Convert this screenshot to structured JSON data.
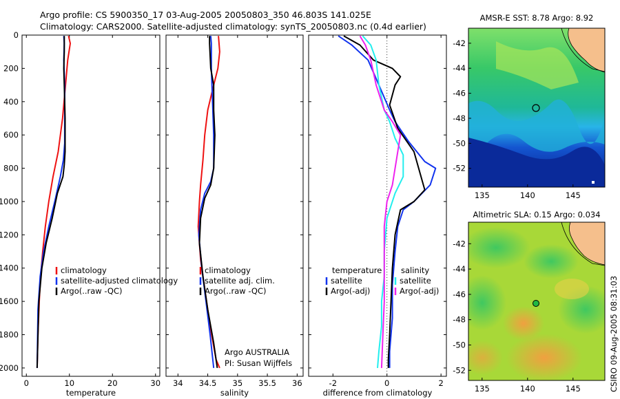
{
  "header": {
    "line1": "Argo profile: CS 5900350_17 03-Aug-2005 20050803_350 46.803S 141.025E",
    "line2": "Climatology: CARS2000. Satellite-adjusted climatology: synTS_20050803.nc (0.4d earlier)"
  },
  "stamp": "CSIRO 09-Aug-2005 08:31:03",
  "colors": {
    "red": "#ee1111",
    "blue": "#1133ee",
    "black": "#000000",
    "cyan": "#22eeee",
    "magenta": "#ee22ee"
  },
  "chart_data": [
    {
      "type": "line",
      "xlabel": "temperature",
      "xlim": [
        -1,
        31
      ],
      "ylim": [
        2050,
        0
      ],
      "xticks": [
        0,
        10,
        20,
        30
      ],
      "yticks": [
        0,
        200,
        400,
        600,
        800,
        1000,
        1200,
        1400,
        1600,
        1800,
        2000
      ],
      "legend": [
        "climatology",
        "satellite-adjusted climatology",
        "Argo(..raw -QC)"
      ],
      "series": [
        {
          "name": "climatology",
          "color": "red",
          "x": [
            9.8,
            10.2,
            9.6,
            9.1,
            8.4,
            7.4,
            6.2,
            5.2,
            4.4,
            3.8,
            3.3,
            3.0,
            2.7,
            2.5
          ],
          "y": [
            5,
            50,
            150,
            300,
            500,
            700,
            850,
            1000,
            1150,
            1300,
            1450,
            1600,
            1800,
            2000
          ]
        },
        {
          "name": "satellite-adjusted climatology",
          "color": "blue",
          "x": [
            8.7,
            8.8,
            8.7,
            8.9,
            8.9,
            8.9,
            8.6,
            7.9,
            6.6,
            5.2,
            4.0,
            3.2,
            2.7,
            2.5
          ],
          "y": [
            5,
            50,
            150,
            300,
            500,
            650,
            750,
            850,
            1000,
            1150,
            1300,
            1450,
            1650,
            2000
          ]
        },
        {
          "name": "Argo(..raw -QC)",
          "color": "black",
          "x": [
            8.8,
            8.8,
            8.7,
            8.8,
            9.0,
            9.0,
            8.8,
            8.5,
            7.2,
            6.0,
            4.6,
            3.6,
            2.9,
            2.5
          ],
          "y": [
            5,
            100,
            200,
            300,
            500,
            700,
            780,
            850,
            950,
            1100,
            1250,
            1400,
            1600,
            2000
          ]
        }
      ]
    },
    {
      "type": "line",
      "xlabel": "salinity",
      "xlim": [
        33.8,
        36.1
      ],
      "ylim": [
        2050,
        0
      ],
      "xticks": [
        34,
        34.5,
        35,
        35.5,
        36
      ],
      "xticklabels": [
        "34",
        "34.5",
        "35",
        "35.5",
        "36"
      ],
      "legend": [
        "climatology",
        "satellite adj. clim.",
        "Argo(..raw -QC)"
      ],
      "series": [
        {
          "name": "climatology",
          "color": "red",
          "x": [
            34.68,
            34.7,
            34.67,
            34.6,
            34.5,
            34.45,
            34.42,
            34.38,
            34.36,
            34.34,
            34.38,
            34.46,
            34.54,
            34.64,
            34.7
          ],
          "y": [
            5,
            100,
            200,
            300,
            450,
            600,
            750,
            900,
            1000,
            1150,
            1350,
            1550,
            1750,
            1950,
            2000
          ]
        },
        {
          "name": "satellite adj. clim.",
          "color": "blue",
          "x": [
            34.55,
            34.56,
            34.56,
            34.58,
            34.6,
            34.6,
            34.6,
            34.55,
            34.45,
            34.38,
            34.35,
            34.4,
            34.47,
            34.54,
            34.6
          ],
          "y": [
            5,
            50,
            200,
            400,
            600,
            680,
            800,
            880,
            950,
            1050,
            1200,
            1400,
            1600,
            1800,
            2000
          ]
        },
        {
          "name": "Argo(..raw -QC)",
          "color": "black",
          "x": [
            34.53,
            34.53,
            34.55,
            34.6,
            34.6,
            34.62,
            34.6,
            34.55,
            34.45,
            34.38,
            34.36,
            34.42,
            34.5,
            34.6,
            34.66
          ],
          "y": [
            5,
            50,
            200,
            300,
            450,
            600,
            800,
            900,
            980,
            1100,
            1250,
            1450,
            1650,
            1850,
            2000
          ]
        }
      ]
    },
    {
      "type": "line",
      "xlabel": "difference from climatology",
      "xlim": [
        -2.9,
        2.2
      ],
      "ylim": [
        2050,
        0
      ],
      "xticks": [
        -2,
        0,
        2
      ],
      "legend_groups": [
        {
          "title": "temperature",
          "items": [
            {
              "name": "satellite",
              "color": "blue"
            },
            {
              "name": "Argo(-adj)",
              "color": "black"
            }
          ]
        },
        {
          "title": "salinity",
          "items": [
            {
              "name": "satellite",
              "color": "cyan"
            },
            {
              "name": "Argo(-adj)",
              "color": "magenta"
            }
          ]
        }
      ],
      "zero_line": 0,
      "series": [
        {
          "name": "temperature satellite",
          "color": "blue",
          "x": [
            -1.8,
            -1.3,
            -0.7,
            -0.3,
            0.1,
            0.3,
            0.8,
            1.4,
            1.8,
            1.6,
            1.0,
            0.6,
            0.4,
            0.3,
            0.2,
            0.2,
            0.1,
            0.1
          ],
          "y": [
            5,
            60,
            150,
            300,
            450,
            520,
            640,
            760,
            800,
            900,
            1000,
            1050,
            1150,
            1300,
            1500,
            1700,
            1900,
            2000
          ]
        },
        {
          "name": "temperature Argo(-adj)",
          "color": "black",
          "x": [
            -1.6,
            -1.0,
            -0.5,
            0.2,
            0.5,
            0.3,
            0.1,
            0.4,
            1.0,
            1.4,
            1.0,
            0.5,
            0.3,
            0.2,
            0.15,
            0.1,
            0.05,
            0.05
          ],
          "y": [
            5,
            60,
            150,
            200,
            250,
            300,
            420,
            560,
            700,
            930,
            1000,
            1050,
            1200,
            1400,
            1600,
            1800,
            1950,
            2000
          ]
        },
        {
          "name": "salinity satellite",
          "color": "cyan",
          "x": [
            -0.9,
            -0.6,
            -0.4,
            -0.3,
            -0.1,
            0.1,
            0.3,
            0.6,
            0.6,
            0.3,
            0.0,
            -0.1,
            -0.1,
            -0.2,
            -0.2,
            -0.3,
            -0.35
          ],
          "y": [
            5,
            60,
            150,
            300,
            450,
            520,
            620,
            720,
            850,
            950,
            1100,
            1300,
            1450,
            1600,
            1750,
            1900,
            2000
          ]
        },
        {
          "name": "salinity Argo(-adj)",
          "color": "magenta",
          "x": [
            -1.0,
            -0.8,
            -0.6,
            -0.4,
            -0.1,
            0.2,
            0.5,
            0.4,
            0.2,
            0.0,
            -0.1,
            -0.1,
            -0.1,
            -0.1,
            -0.15,
            -0.2
          ],
          "y": [
            5,
            60,
            150,
            300,
            450,
            520,
            600,
            700,
            900,
            1000,
            1150,
            1300,
            1450,
            1600,
            1800,
            2000
          ]
        }
      ]
    }
  ],
  "maps": [
    {
      "title": "AMSR-E SST: 8.78  Argo: 8.92",
      "xticks": [
        135,
        140,
        145
      ],
      "yticks": [
        -42,
        -44,
        -46,
        -48,
        -50,
        -52
      ],
      "xlim": [
        133.5,
        148.5
      ],
      "ylim": [
        -53.5,
        -40.8
      ],
      "marker": {
        "lon": 141.0,
        "lat": -46.8,
        "style": "open-circle"
      }
    },
    {
      "title": "Altimetric SLA: 0.15  Argo: 0.034",
      "xticks": [
        135,
        140,
        145
      ],
      "yticks": [
        -42,
        -44,
        -46,
        -48,
        -50,
        -52
      ],
      "xlim": [
        133.5,
        148.5
      ],
      "ylim": [
        -52.8,
        -40.3
      ],
      "marker": {
        "lon": 141.0,
        "lat": -46.8,
        "style": "green-dot"
      }
    }
  ],
  "attribution": {
    "line1": "Argo AUSTRALIA",
    "line2": "PI: Susan Wijffels"
  }
}
